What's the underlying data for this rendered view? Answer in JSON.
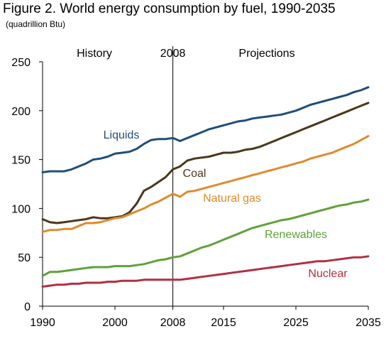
{
  "header": {
    "title": "Figure 2. World energy consumption by fuel, 1990-2035",
    "subtitle": "(quadrillion Btu)"
  },
  "chart_data": {
    "type": "line",
    "title": "Figure 2. World energy consumption by fuel, 1990-2035",
    "subtitle": "(quadrillion Btu)",
    "xlabel": "",
    "ylabel": "",
    "xlim": [
      1990,
      2035
    ],
    "ylim": [
      0,
      250
    ],
    "x_ticks": [
      1990,
      2000,
      2008,
      2015,
      2025,
      2035
    ],
    "y_ticks": [
      0,
      50,
      100,
      150,
      200,
      250
    ],
    "grid": false,
    "legend": "inline labels",
    "divider": {
      "x": 2008,
      "label": "2008"
    },
    "regions": [
      {
        "label": "History"
      },
      {
        "label": "Projections"
      }
    ],
    "series": [
      {
        "name": "Liquids",
        "color": "#1f4e79",
        "points": [
          [
            1990,
            137
          ],
          [
            1991,
            138
          ],
          [
            1992,
            138
          ],
          [
            1993,
            138
          ],
          [
            1994,
            140
          ],
          [
            1995,
            143
          ],
          [
            1996,
            146
          ],
          [
            1997,
            150
          ],
          [
            1998,
            151
          ],
          [
            1999,
            153
          ],
          [
            2000,
            156
          ],
          [
            2001,
            157
          ],
          [
            2002,
            158
          ],
          [
            2003,
            161
          ],
          [
            2004,
            166
          ],
          [
            2005,
            170
          ],
          [
            2006,
            171
          ],
          [
            2007,
            171
          ],
          [
            2008,
            172
          ],
          [
            2009,
            169
          ],
          [
            2010,
            172
          ],
          [
            2011,
            175
          ],
          [
            2012,
            178
          ],
          [
            2013,
            181
          ],
          [
            2014,
            183
          ],
          [
            2015,
            185
          ],
          [
            2016,
            187
          ],
          [
            2017,
            189
          ],
          [
            2018,
            190
          ],
          [
            2019,
            192
          ],
          [
            2020,
            193
          ],
          [
            2021,
            194
          ],
          [
            2022,
            195
          ],
          [
            2023,
            196
          ],
          [
            2024,
            198
          ],
          [
            2025,
            200
          ],
          [
            2026,
            203
          ],
          [
            2027,
            206
          ],
          [
            2028,
            208
          ],
          [
            2029,
            210
          ],
          [
            2030,
            212
          ],
          [
            2031,
            214
          ],
          [
            2032,
            216
          ],
          [
            2033,
            219
          ],
          [
            2034,
            221
          ],
          [
            2035,
            224
          ]
        ]
      },
      {
        "name": "Coal",
        "color": "#4a3718",
        "points": [
          [
            1990,
            89
          ],
          [
            1991,
            86
          ],
          [
            1992,
            85
          ],
          [
            1993,
            86
          ],
          [
            1994,
            87
          ],
          [
            1995,
            88
          ],
          [
            1996,
            89
          ],
          [
            1997,
            91
          ],
          [
            1998,
            90
          ],
          [
            1999,
            90
          ],
          [
            2000,
            91
          ],
          [
            2001,
            92
          ],
          [
            2002,
            96
          ],
          [
            2003,
            105
          ],
          [
            2004,
            118
          ],
          [
            2005,
            122
          ],
          [
            2006,
            127
          ],
          [
            2007,
            132
          ],
          [
            2008,
            140
          ],
          [
            2009,
            143
          ],
          [
            2010,
            149
          ],
          [
            2011,
            151
          ],
          [
            2012,
            152
          ],
          [
            2013,
            153
          ],
          [
            2014,
            155
          ],
          [
            2015,
            157
          ],
          [
            2016,
            157
          ],
          [
            2017,
            158
          ],
          [
            2018,
            160
          ],
          [
            2019,
            161
          ],
          [
            2020,
            163
          ],
          [
            2021,
            166
          ],
          [
            2022,
            169
          ],
          [
            2023,
            172
          ],
          [
            2024,
            175
          ],
          [
            2025,
            178
          ],
          [
            2026,
            181
          ],
          [
            2027,
            184
          ],
          [
            2028,
            187
          ],
          [
            2029,
            190
          ],
          [
            2030,
            193
          ],
          [
            2031,
            196
          ],
          [
            2032,
            199
          ],
          [
            2033,
            202
          ],
          [
            2034,
            205
          ],
          [
            2035,
            208
          ]
        ]
      },
      {
        "name": "Natural gas",
        "color": "#e08a2e",
        "points": [
          [
            1990,
            76
          ],
          [
            1991,
            78
          ],
          [
            1992,
            78
          ],
          [
            1993,
            79
          ],
          [
            1994,
            79
          ],
          [
            1995,
            82
          ],
          [
            1996,
            85
          ],
          [
            1997,
            85
          ],
          [
            1998,
            86
          ],
          [
            1999,
            88
          ],
          [
            2000,
            90
          ],
          [
            2001,
            91
          ],
          [
            2002,
            94
          ],
          [
            2003,
            97
          ],
          [
            2004,
            100
          ],
          [
            2005,
            104
          ],
          [
            2006,
            107
          ],
          [
            2007,
            111
          ],
          [
            2008,
            115
          ],
          [
            2009,
            112
          ],
          [
            2010,
            117
          ],
          [
            2011,
            118
          ],
          [
            2012,
            120
          ],
          [
            2013,
            122
          ],
          [
            2014,
            124
          ],
          [
            2015,
            126
          ],
          [
            2016,
            128
          ],
          [
            2017,
            130
          ],
          [
            2018,
            132
          ],
          [
            2019,
            134
          ],
          [
            2020,
            136
          ],
          [
            2021,
            138
          ],
          [
            2022,
            140
          ],
          [
            2023,
            142
          ],
          [
            2024,
            144
          ],
          [
            2025,
            146
          ],
          [
            2026,
            148
          ],
          [
            2027,
            151
          ],
          [
            2028,
            153
          ],
          [
            2029,
            155
          ],
          [
            2030,
            157
          ],
          [
            2031,
            160
          ],
          [
            2032,
            163
          ],
          [
            2033,
            166
          ],
          [
            2034,
            170
          ],
          [
            2035,
            174
          ]
        ]
      },
      {
        "name": "Renewables",
        "color": "#5fa13a",
        "points": [
          [
            1990,
            31
          ],
          [
            1991,
            35
          ],
          [
            1992,
            35
          ],
          [
            1993,
            36
          ],
          [
            1994,
            37
          ],
          [
            1995,
            38
          ],
          [
            1996,
            39
          ],
          [
            1997,
            40
          ],
          [
            1998,
            40
          ],
          [
            1999,
            40
          ],
          [
            2000,
            41
          ],
          [
            2001,
            41
          ],
          [
            2002,
            41
          ],
          [
            2003,
            42
          ],
          [
            2004,
            43
          ],
          [
            2005,
            45
          ],
          [
            2006,
            47
          ],
          [
            2007,
            48
          ],
          [
            2008,
            50
          ],
          [
            2009,
            51
          ],
          [
            2010,
            54
          ],
          [
            2011,
            57
          ],
          [
            2012,
            60
          ],
          [
            2013,
            62
          ],
          [
            2014,
            65
          ],
          [
            2015,
            68
          ],
          [
            2016,
            71
          ],
          [
            2017,
            74
          ],
          [
            2018,
            77
          ],
          [
            2019,
            80
          ],
          [
            2020,
            82
          ],
          [
            2021,
            84
          ],
          [
            2022,
            86
          ],
          [
            2023,
            88
          ],
          [
            2024,
            89
          ],
          [
            2025,
            91
          ],
          [
            2026,
            93
          ],
          [
            2027,
            95
          ],
          [
            2028,
            97
          ],
          [
            2029,
            99
          ],
          [
            2030,
            101
          ],
          [
            2031,
            103
          ],
          [
            2032,
            104
          ],
          [
            2033,
            106
          ],
          [
            2034,
            107
          ],
          [
            2035,
            109
          ]
        ]
      },
      {
        "name": "Nuclear",
        "color": "#b03040",
        "points": [
          [
            1990,
            20
          ],
          [
            1991,
            21
          ],
          [
            1992,
            22
          ],
          [
            1993,
            22
          ],
          [
            1994,
            23
          ],
          [
            1995,
            23
          ],
          [
            1996,
            24
          ],
          [
            1997,
            24
          ],
          [
            1998,
            24
          ],
          [
            1999,
            25
          ],
          [
            2000,
            25
          ],
          [
            2001,
            26
          ],
          [
            2002,
            26
          ],
          [
            2003,
            26
          ],
          [
            2004,
            27
          ],
          [
            2005,
            27
          ],
          [
            2006,
            27
          ],
          [
            2007,
            27
          ],
          [
            2008,
            27
          ],
          [
            2009,
            27
          ],
          [
            2010,
            28
          ],
          [
            2011,
            29
          ],
          [
            2012,
            30
          ],
          [
            2013,
            31
          ],
          [
            2014,
            32
          ],
          [
            2015,
            33
          ],
          [
            2016,
            34
          ],
          [
            2017,
            35
          ],
          [
            2018,
            36
          ],
          [
            2019,
            37
          ],
          [
            2020,
            38
          ],
          [
            2021,
            39
          ],
          [
            2022,
            40
          ],
          [
            2023,
            41
          ],
          [
            2024,
            42
          ],
          [
            2025,
            43
          ],
          [
            2026,
            44
          ],
          [
            2027,
            45
          ],
          [
            2028,
            46
          ],
          [
            2029,
            46
          ],
          [
            2030,
            47
          ],
          [
            2031,
            48
          ],
          [
            2032,
            49
          ],
          [
            2033,
            50
          ],
          [
            2034,
            50
          ],
          [
            2035,
            51
          ]
        ]
      }
    ]
  }
}
